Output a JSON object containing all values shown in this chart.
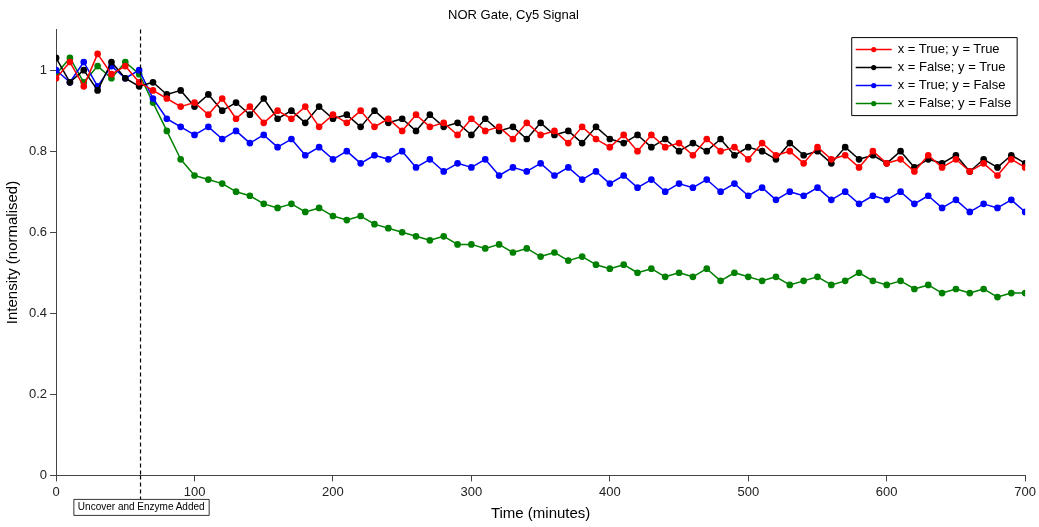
{
  "chart_data": {
    "type": "line",
    "title": "NOR Gate, Cy5 Signal",
    "xlabel": "Time (minutes)",
    "ylabel": "Intensity (normalised)",
    "x": [
      0,
      10,
      20,
      30,
      40,
      50,
      60,
      70,
      80,
      90,
      100,
      110,
      120,
      130,
      140,
      150,
      160,
      170,
      180,
      190,
      200,
      210,
      220,
      230,
      240,
      250,
      260,
      270,
      280,
      290,
      300,
      310,
      320,
      330,
      340,
      350,
      360,
      370,
      380,
      390,
      400,
      410,
      420,
      430,
      440,
      450,
      460,
      470,
      480,
      490,
      500,
      510,
      520,
      530,
      540,
      550,
      560,
      570,
      580,
      590,
      600,
      610,
      620,
      630,
      640,
      650,
      660,
      670,
      680,
      690,
      700
    ],
    "series": [
      {
        "name": "x = True; y = True",
        "color": "#ff0000",
        "values": [
          0.98,
          1.02,
          0.96,
          1.04,
          0.99,
          1.01,
          0.97,
          0.95,
          0.93,
          0.91,
          0.92,
          0.89,
          0.93,
          0.88,
          0.91,
          0.87,
          0.9,
          0.88,
          0.91,
          0.86,
          0.89,
          0.87,
          0.9,
          0.86,
          0.88,
          0.85,
          0.89,
          0.86,
          0.87,
          0.84,
          0.88,
          0.85,
          0.86,
          0.83,
          0.87,
          0.84,
          0.85,
          0.82,
          0.86,
          0.83,
          0.81,
          0.84,
          0.8,
          0.84,
          0.81,
          0.82,
          0.79,
          0.83,
          0.8,
          0.81,
          0.78,
          0.82,
          0.79,
          0.8,
          0.77,
          0.81,
          0.78,
          0.79,
          0.76,
          0.8,
          0.77,
          0.78,
          0.75,
          0.79,
          0.76,
          0.78,
          0.75,
          0.77,
          0.74,
          0.78,
          0.76
        ]
      },
      {
        "name": "x = False; y = True",
        "color": "#000000",
        "values": [
          1.03,
          0.97,
          1.0,
          0.95,
          1.02,
          0.98,
          0.96,
          0.97,
          0.94,
          0.95,
          0.91,
          0.94,
          0.9,
          0.92,
          0.89,
          0.93,
          0.88,
          0.9,
          0.87,
          0.91,
          0.88,
          0.89,
          0.86,
          0.9,
          0.87,
          0.88,
          0.85,
          0.89,
          0.86,
          0.87,
          0.84,
          0.88,
          0.85,
          0.86,
          0.83,
          0.87,
          0.84,
          0.85,
          0.82,
          0.86,
          0.83,
          0.82,
          0.84,
          0.81,
          0.83,
          0.8,
          0.82,
          0.8,
          0.83,
          0.79,
          0.81,
          0.8,
          0.78,
          0.82,
          0.79,
          0.8,
          0.77,
          0.81,
          0.78,
          0.79,
          0.77,
          0.8,
          0.76,
          0.78,
          0.77,
          0.79,
          0.75,
          0.78,
          0.76,
          0.79,
          0.77
        ]
      },
      {
        "name": "x = True; y = False",
        "color": "#0000ff",
        "values": [
          1.0,
          0.97,
          1.02,
          0.96,
          1.01,
          0.98,
          1.0,
          0.93,
          0.88,
          0.86,
          0.84,
          0.86,
          0.83,
          0.85,
          0.82,
          0.84,
          0.81,
          0.83,
          0.79,
          0.81,
          0.78,
          0.8,
          0.77,
          0.79,
          0.78,
          0.8,
          0.76,
          0.78,
          0.75,
          0.77,
          0.76,
          0.78,
          0.74,
          0.76,
          0.75,
          0.77,
          0.74,
          0.76,
          0.73,
          0.75,
          0.72,
          0.74,
          0.71,
          0.73,
          0.7,
          0.72,
          0.71,
          0.73,
          0.7,
          0.72,
          0.69,
          0.71,
          0.68,
          0.7,
          0.69,
          0.71,
          0.68,
          0.7,
          0.67,
          0.69,
          0.68,
          0.7,
          0.67,
          0.69,
          0.66,
          0.68,
          0.65,
          0.67,
          0.66,
          0.68,
          0.65
        ]
      },
      {
        "name": "x = False; y = False",
        "color": "#008000",
        "values": [
          0.99,
          1.03,
          0.97,
          1.01,
          0.98,
          1.02,
          0.99,
          0.92,
          0.85,
          0.78,
          0.74,
          0.73,
          0.72,
          0.7,
          0.69,
          0.67,
          0.66,
          0.67,
          0.65,
          0.66,
          0.64,
          0.63,
          0.64,
          0.62,
          0.61,
          0.6,
          0.59,
          0.58,
          0.59,
          0.57,
          0.57,
          0.56,
          0.57,
          0.55,
          0.56,
          0.54,
          0.55,
          0.53,
          0.54,
          0.52,
          0.51,
          0.52,
          0.5,
          0.51,
          0.49,
          0.5,
          0.49,
          0.51,
          0.48,
          0.5,
          0.49,
          0.48,
          0.49,
          0.47,
          0.48,
          0.49,
          0.47,
          0.48,
          0.5,
          0.48,
          0.47,
          0.48,
          0.46,
          0.47,
          0.45,
          0.46,
          0.45,
          0.46,
          0.44,
          0.45,
          0.45
        ]
      }
    ],
    "xlim": [
      0,
      700
    ],
    "xticks": [
      0,
      100,
      200,
      300,
      400,
      500,
      600,
      700
    ],
    "ylim": [
      0,
      1.1
    ],
    "yticks": [
      0,
      0.2,
      0.4,
      0.6,
      0.8,
      1
    ],
    "marker": "circle",
    "line_style": "solid",
    "legend": "top right",
    "grid": false,
    "ref_lines": [
      {
        "axis": "x",
        "value": 61,
        "label": "Uncover and Enzyme Added",
        "color": "#000000",
        "line_style": "dashed"
      }
    ]
  }
}
